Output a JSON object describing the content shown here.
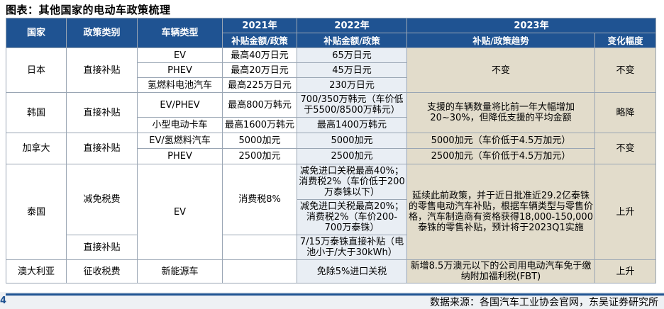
{
  "title": "图表：其他国家的电动车政策梳理",
  "headers": {
    "country": "国家",
    "policy_type": "政策类别",
    "vehicle_type": "车辆类型",
    "y2021": "2021年",
    "y2022": "2022年",
    "y2023": "2023年",
    "y2021_sub": "补贴金额/政策",
    "y2022_sub": "补贴金额/政策",
    "y2023_sub": "补贴/政策趋势",
    "change": "变化幅度"
  },
  "japan": {
    "country": "日本",
    "policy_type": "直接补贴",
    "rows": [
      {
        "vehicle": "EV",
        "y2021": "最高40万日元",
        "y2022": "65万日元"
      },
      {
        "vehicle": "PHEV",
        "y2021": "最高20万日元",
        "y2022": "45万日元"
      },
      {
        "vehicle": "氢燃料电池汽车",
        "y2021": "最高225万日元",
        "y2022": "230万日元"
      }
    ],
    "y2023": "不变",
    "change": "不变"
  },
  "korea": {
    "country": "韩国",
    "policy_type": "直接补贴",
    "rows": [
      {
        "vehicle": "EV/PHEV",
        "y2021": "最高800万韩元",
        "y2022": "700/350万韩元（车价低于5500/8500万韩元）"
      },
      {
        "vehicle": "小型电动卡车",
        "y2021": "最高1600万韩元",
        "y2022": "最高1400万韩元"
      }
    ],
    "y2023": "支援的车辆数量将比前一年大幅增加20~30%，但降低支援的平均金额",
    "change": "略降"
  },
  "canada": {
    "country": "加拿大",
    "policy_type": "直接补贴",
    "rows": [
      {
        "vehicle": "EV/氢燃料汽车",
        "y2021": "5000加元",
        "y2022": "5000加元",
        "y2023": "5000加元（车价低于4.5万加元）"
      },
      {
        "vehicle": "PHEV",
        "y2021": "2500加元",
        "y2022": "2500加元",
        "y2023": "2500加元（车价低于4.5万加元）"
      }
    ],
    "change": "不变"
  },
  "thailand": {
    "country": "泰国",
    "policy_type_1": "减免税费",
    "policy_type_2": "直接补贴",
    "vehicle": "EV",
    "y2021": "消费税8%",
    "y2022_a": "减免进口关税最高40%；消费税2%（车价低于200万泰铢以下）",
    "y2022_b": "减免进口关税最高20%；消费税2%（车价200-700万泰铢）",
    "y2022_c": "7/15万泰铢直接补贴（电池小于/大于30kWh）",
    "y2023": "延续此前政策，并于近日批准近29.2亿泰铢的零售电动汽车补贴，根据车辆类型与零售价格，汽车制造商有资格获得18,000-150,000泰铢的零售补贴，预计将于2023Q1实施",
    "change": "上升"
  },
  "australia": {
    "country": "澳大利亚",
    "policy_type": "征收税费",
    "vehicle": "新能源车",
    "y2022": "免除5%进口关税",
    "y2023": "新增8.5万澳元以下的公司用电动汽车免于缴纳附加福利税(FBT)",
    "change": "上升"
  },
  "footer": {
    "page_number": "4",
    "source": "数据来源：各国汽车工业协会官网，东吴证券研究所"
  }
}
